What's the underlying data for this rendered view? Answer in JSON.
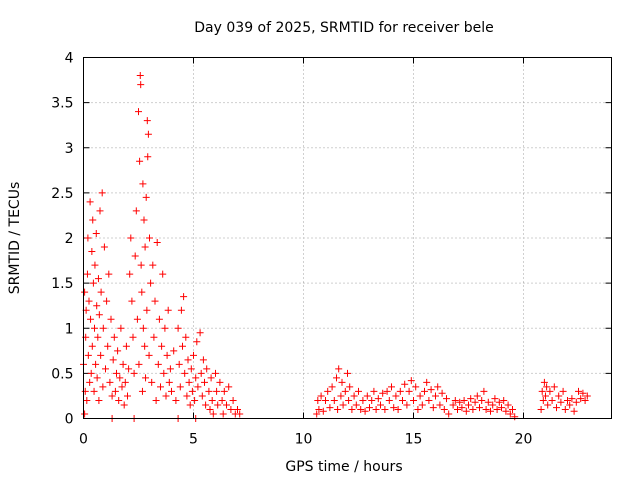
{
  "chart_data": {
    "type": "scatter",
    "title": "Day 039 of 2025, SRMTID for receiver bele",
    "xlabel": "GPS time / hours",
    "ylabel": "SRMTID / TECUs",
    "xlim": [
      0,
      24
    ],
    "ylim": [
      0,
      4
    ],
    "xticks": [
      "0",
      "5",
      "10",
      "15",
      "20"
    ],
    "yticks": [
      "0",
      "0.5",
      "1",
      "1.5",
      "2",
      "2.5",
      "3",
      "3.5",
      "4"
    ],
    "grid": true,
    "marker": "+",
    "series": [
      {
        "name": "SRMTID",
        "color": "#ff0000",
        "points": [
          [
            0.0,
            0.6
          ],
          [
            0.05,
            0.05
          ],
          [
            0.05,
            1.4
          ],
          [
            0.08,
            0.3
          ],
          [
            0.1,
            0.9
          ],
          [
            0.12,
            1.2
          ],
          [
            0.15,
            0.2
          ],
          [
            0.18,
            1.6
          ],
          [
            0.2,
            2.0
          ],
          [
            0.22,
            0.7
          ],
          [
            0.25,
            1.3
          ],
          [
            0.28,
            0.4
          ],
          [
            0.3,
            2.4
          ],
          [
            0.32,
            1.1
          ],
          [
            0.35,
            0.5
          ],
          [
            0.38,
            1.85
          ],
          [
            0.4,
            0.8
          ],
          [
            0.42,
            2.2
          ],
          [
            0.45,
            1.5
          ],
          [
            0.48,
            0.3
          ],
          [
            0.5,
            1.0
          ],
          [
            0.52,
            1.7
          ],
          [
            0.55,
            0.6
          ],
          [
            0.58,
            2.05
          ],
          [
            0.6,
            1.25
          ],
          [
            0.62,
            0.45
          ],
          [
            0.65,
            0.9
          ],
          [
            0.68,
            1.55
          ],
          [
            0.7,
            0.2
          ],
          [
            0.72,
            1.15
          ],
          [
            0.75,
            2.3
          ],
          [
            0.78,
            0.7
          ],
          [
            0.8,
            1.4
          ],
          [
            0.85,
            2.5
          ],
          [
            0.88,
            0.35
          ],
          [
            0.9,
            1.0
          ],
          [
            0.95,
            1.9
          ],
          [
            1.0,
            0.55
          ],
          [
            1.05,
            1.3
          ],
          [
            1.1,
            0.8
          ],
          [
            1.15,
            1.6
          ],
          [
            1.2,
            0.4
          ],
          [
            1.25,
            1.1
          ],
          [
            1.3,
            0.25
          ],
          [
            1.35,
            0.65
          ],
          [
            1.4,
            0.9
          ],
          [
            1.45,
            0.3
          ],
          [
            1.5,
            0.5
          ],
          [
            1.55,
            0.75
          ],
          [
            1.6,
            0.2
          ],
          [
            1.65,
            0.45
          ],
          [
            1.7,
            1.0
          ],
          [
            1.75,
            0.35
          ],
          [
            1.8,
            0.6
          ],
          [
            1.85,
            0.15
          ],
          [
            1.9,
            0.4
          ],
          [
            1.95,
            0.8
          ],
          [
            2.0,
            0.25
          ],
          [
            2.05,
            0.55
          ],
          [
            2.1,
            1.6
          ],
          [
            2.15,
            2.0
          ],
          [
            2.2,
            1.3
          ],
          [
            2.25,
            0.9
          ],
          [
            2.3,
            0.5
          ],
          [
            2.35,
            1.8
          ],
          [
            2.4,
            2.3
          ],
          [
            2.45,
            1.1
          ],
          [
            2.5,
            3.4
          ],
          [
            2.52,
            0.6
          ],
          [
            2.55,
            2.85
          ],
          [
            2.58,
            3.8
          ],
          [
            2.6,
            3.7
          ],
          [
            2.62,
            1.7
          ],
          [
            2.65,
            1.4
          ],
          [
            2.68,
            0.3
          ],
          [
            2.7,
            2.6
          ],
          [
            2.72,
            1.0
          ],
          [
            2.75,
            2.2
          ],
          [
            2.78,
            0.8
          ],
          [
            2.8,
            1.9
          ],
          [
            2.82,
            0.45
          ],
          [
            2.85,
            2.45
          ],
          [
            2.88,
            1.2
          ],
          [
            2.9,
            3.3
          ],
          [
            2.92,
            2.9
          ],
          [
            2.95,
            3.15
          ],
          [
            2.98,
            0.7
          ],
          [
            3.0,
            2.0
          ],
          [
            3.05,
            1.5
          ],
          [
            3.1,
            0.4
          ],
          [
            3.15,
            1.7
          ],
          [
            3.2,
            0.9
          ],
          [
            3.25,
            1.3
          ],
          [
            3.3,
            0.2
          ],
          [
            3.35,
            1.95
          ],
          [
            3.4,
            0.6
          ],
          [
            3.45,
            1.1
          ],
          [
            3.5,
            0.35
          ],
          [
            3.55,
            0.8
          ],
          [
            3.6,
            1.6
          ],
          [
            3.65,
            0.5
          ],
          [
            3.7,
            1.0
          ],
          [
            3.75,
            0.25
          ],
          [
            3.8,
            0.7
          ],
          [
            3.85,
            1.2
          ],
          [
            3.9,
            0.4
          ],
          [
            3.95,
            0.55
          ],
          [
            4.0,
            0.3
          ],
          [
            4.1,
            0.75
          ],
          [
            4.2,
            0.2
          ],
          [
            4.3,
            1.0
          ],
          [
            4.35,
            0.6
          ],
          [
            4.4,
            0.35
          ],
          [
            4.45,
            1.2
          ],
          [
            4.5,
            0.8
          ],
          [
            4.55,
            1.35
          ],
          [
            4.6,
            0.5
          ],
          [
            4.65,
            0.9
          ],
          [
            4.7,
            0.25
          ],
          [
            4.75,
            0.65
          ],
          [
            4.8,
            0.4
          ],
          [
            4.85,
            0.15
          ],
          [
            4.9,
            0.55
          ],
          [
            4.95,
            0.3
          ],
          [
            5.0,
            0.7
          ],
          [
            5.05,
            0.2
          ],
          [
            5.1,
            0.45
          ],
          [
            5.15,
            0.85
          ],
          [
            5.2,
            0.35
          ],
          [
            5.3,
            0.95
          ],
          [
            5.35,
            0.5
          ],
          [
            5.4,
            0.25
          ],
          [
            5.45,
            0.65
          ],
          [
            5.5,
            0.4
          ],
          [
            5.55,
            0.15
          ],
          [
            5.6,
            0.55
          ],
          [
            5.7,
            0.3
          ],
          [
            5.75,
            0.1
          ],
          [
            5.8,
            0.45
          ],
          [
            5.85,
            0.2
          ],
          [
            5.9,
            0.05
          ],
          [
            6.0,
            0.5
          ],
          [
            6.05,
            0.3
          ],
          [
            6.1,
            0.15
          ],
          [
            6.2,
            0.4
          ],
          [
            6.3,
            0.2
          ],
          [
            6.35,
            0.05
          ],
          [
            6.4,
            0.3
          ],
          [
            6.5,
            0.15
          ],
          [
            6.6,
            0.35
          ],
          [
            6.7,
            0.1
          ],
          [
            6.8,
            0.2
          ],
          [
            6.9,
            0.05
          ],
          [
            7.0,
            0.1
          ],
          [
            7.1,
            0.05
          ],
          [
            1.3,
            0.0
          ],
          [
            2.3,
            0.0
          ],
          [
            4.3,
            0.0
          ],
          [
            5.1,
            0.0
          ],
          [
            10.6,
            0.05
          ],
          [
            10.65,
            0.2
          ],
          [
            10.7,
            0.1
          ],
          [
            10.8,
            0.25
          ],
          [
            10.9,
            0.08
          ],
          [
            11.0,
            0.2
          ],
          [
            11.1,
            0.3
          ],
          [
            11.2,
            0.12
          ],
          [
            11.3,
            0.35
          ],
          [
            11.4,
            0.2
          ],
          [
            11.5,
            0.45
          ],
          [
            11.55,
            0.1
          ],
          [
            11.6,
            0.55
          ],
          [
            11.7,
            0.25
          ],
          [
            11.75,
            0.4
          ],
          [
            11.8,
            0.15
          ],
          [
            11.9,
            0.3
          ],
          [
            12.0,
            0.5
          ],
          [
            12.05,
            0.2
          ],
          [
            12.1,
            0.35
          ],
          [
            12.2,
            0.1
          ],
          [
            12.3,
            0.25
          ],
          [
            12.4,
            0.15
          ],
          [
            12.5,
            0.3
          ],
          [
            12.6,
            0.1
          ],
          [
            12.7,
            0.2
          ],
          [
            12.8,
            0.08
          ],
          [
            12.9,
            0.25
          ],
          [
            13.0,
            0.12
          ],
          [
            13.1,
            0.2
          ],
          [
            13.2,
            0.3
          ],
          [
            13.3,
            0.1
          ],
          [
            13.4,
            0.22
          ],
          [
            13.5,
            0.15
          ],
          [
            13.6,
            0.28
          ],
          [
            13.7,
            0.1
          ],
          [
            13.8,
            0.3
          ],
          [
            13.9,
            0.2
          ],
          [
            14.0,
            0.35
          ],
          [
            14.1,
            0.12
          ],
          [
            14.2,
            0.25
          ],
          [
            14.3,
            0.1
          ],
          [
            14.4,
            0.3
          ],
          [
            14.5,
            0.2
          ],
          [
            14.6,
            0.38
          ],
          [
            14.7,
            0.15
          ],
          [
            14.8,
            0.3
          ],
          [
            14.9,
            0.42
          ],
          [
            15.0,
            0.2
          ],
          [
            15.1,
            0.35
          ],
          [
            15.2,
            0.1
          ],
          [
            15.3,
            0.25
          ],
          [
            15.4,
            0.15
          ],
          [
            15.5,
            0.3
          ],
          [
            15.6,
            0.4
          ],
          [
            15.7,
            0.2
          ],
          [
            15.8,
            0.32
          ],
          [
            15.9,
            0.12
          ],
          [
            16.0,
            0.25
          ],
          [
            16.1,
            0.35
          ],
          [
            16.2,
            0.15
          ],
          [
            16.3,
            0.28
          ],
          [
            16.4,
            0.1
          ],
          [
            16.5,
            0.22
          ],
          [
            16.6,
            0.05
          ],
          [
            16.8,
            0.15
          ],
          [
            16.9,
            0.2
          ],
          [
            17.0,
            0.1
          ],
          [
            17.1,
            0.18
          ],
          [
            17.2,
            0.12
          ],
          [
            17.3,
            0.2
          ],
          [
            17.4,
            0.08
          ],
          [
            17.5,
            0.15
          ],
          [
            17.6,
            0.22
          ],
          [
            17.7,
            0.1
          ],
          [
            17.8,
            0.18
          ],
          [
            17.9,
            0.25
          ],
          [
            18.0,
            0.12
          ],
          [
            18.1,
            0.2
          ],
          [
            18.2,
            0.3
          ],
          [
            18.3,
            0.1
          ],
          [
            18.4,
            0.18
          ],
          [
            18.5,
            0.08
          ],
          [
            18.6,
            0.15
          ],
          [
            18.7,
            0.22
          ],
          [
            18.8,
            0.1
          ],
          [
            18.9,
            0.18
          ],
          [
            19.0,
            0.12
          ],
          [
            19.1,
            0.2
          ],
          [
            19.2,
            0.08
          ],
          [
            19.3,
            0.15
          ],
          [
            19.4,
            0.05
          ],
          [
            19.5,
            0.1
          ],
          [
            19.6,
            0.02
          ],
          [
            20.8,
            0.1
          ],
          [
            20.85,
            0.3
          ],
          [
            20.9,
            0.2
          ],
          [
            20.95,
            0.4
          ],
          [
            21.0,
            0.25
          ],
          [
            21.05,
            0.35
          ],
          [
            21.1,
            0.15
          ],
          [
            21.2,
            0.3
          ],
          [
            21.3,
            0.2
          ],
          [
            21.4,
            0.35
          ],
          [
            21.5,
            0.12
          ],
          [
            21.6,
            0.25
          ],
          [
            21.7,
            0.18
          ],
          [
            21.8,
            0.3
          ],
          [
            21.9,
            0.1
          ],
          [
            22.0,
            0.2
          ],
          [
            22.1,
            0.15
          ],
          [
            22.2,
            0.22
          ],
          [
            22.3,
            0.08
          ],
          [
            22.4,
            0.18
          ],
          [
            22.5,
            0.3
          ],
          [
            22.6,
            0.22
          ],
          [
            22.7,
            0.28
          ],
          [
            22.8,
            0.2
          ],
          [
            22.9,
            0.25
          ]
        ]
      }
    ]
  }
}
